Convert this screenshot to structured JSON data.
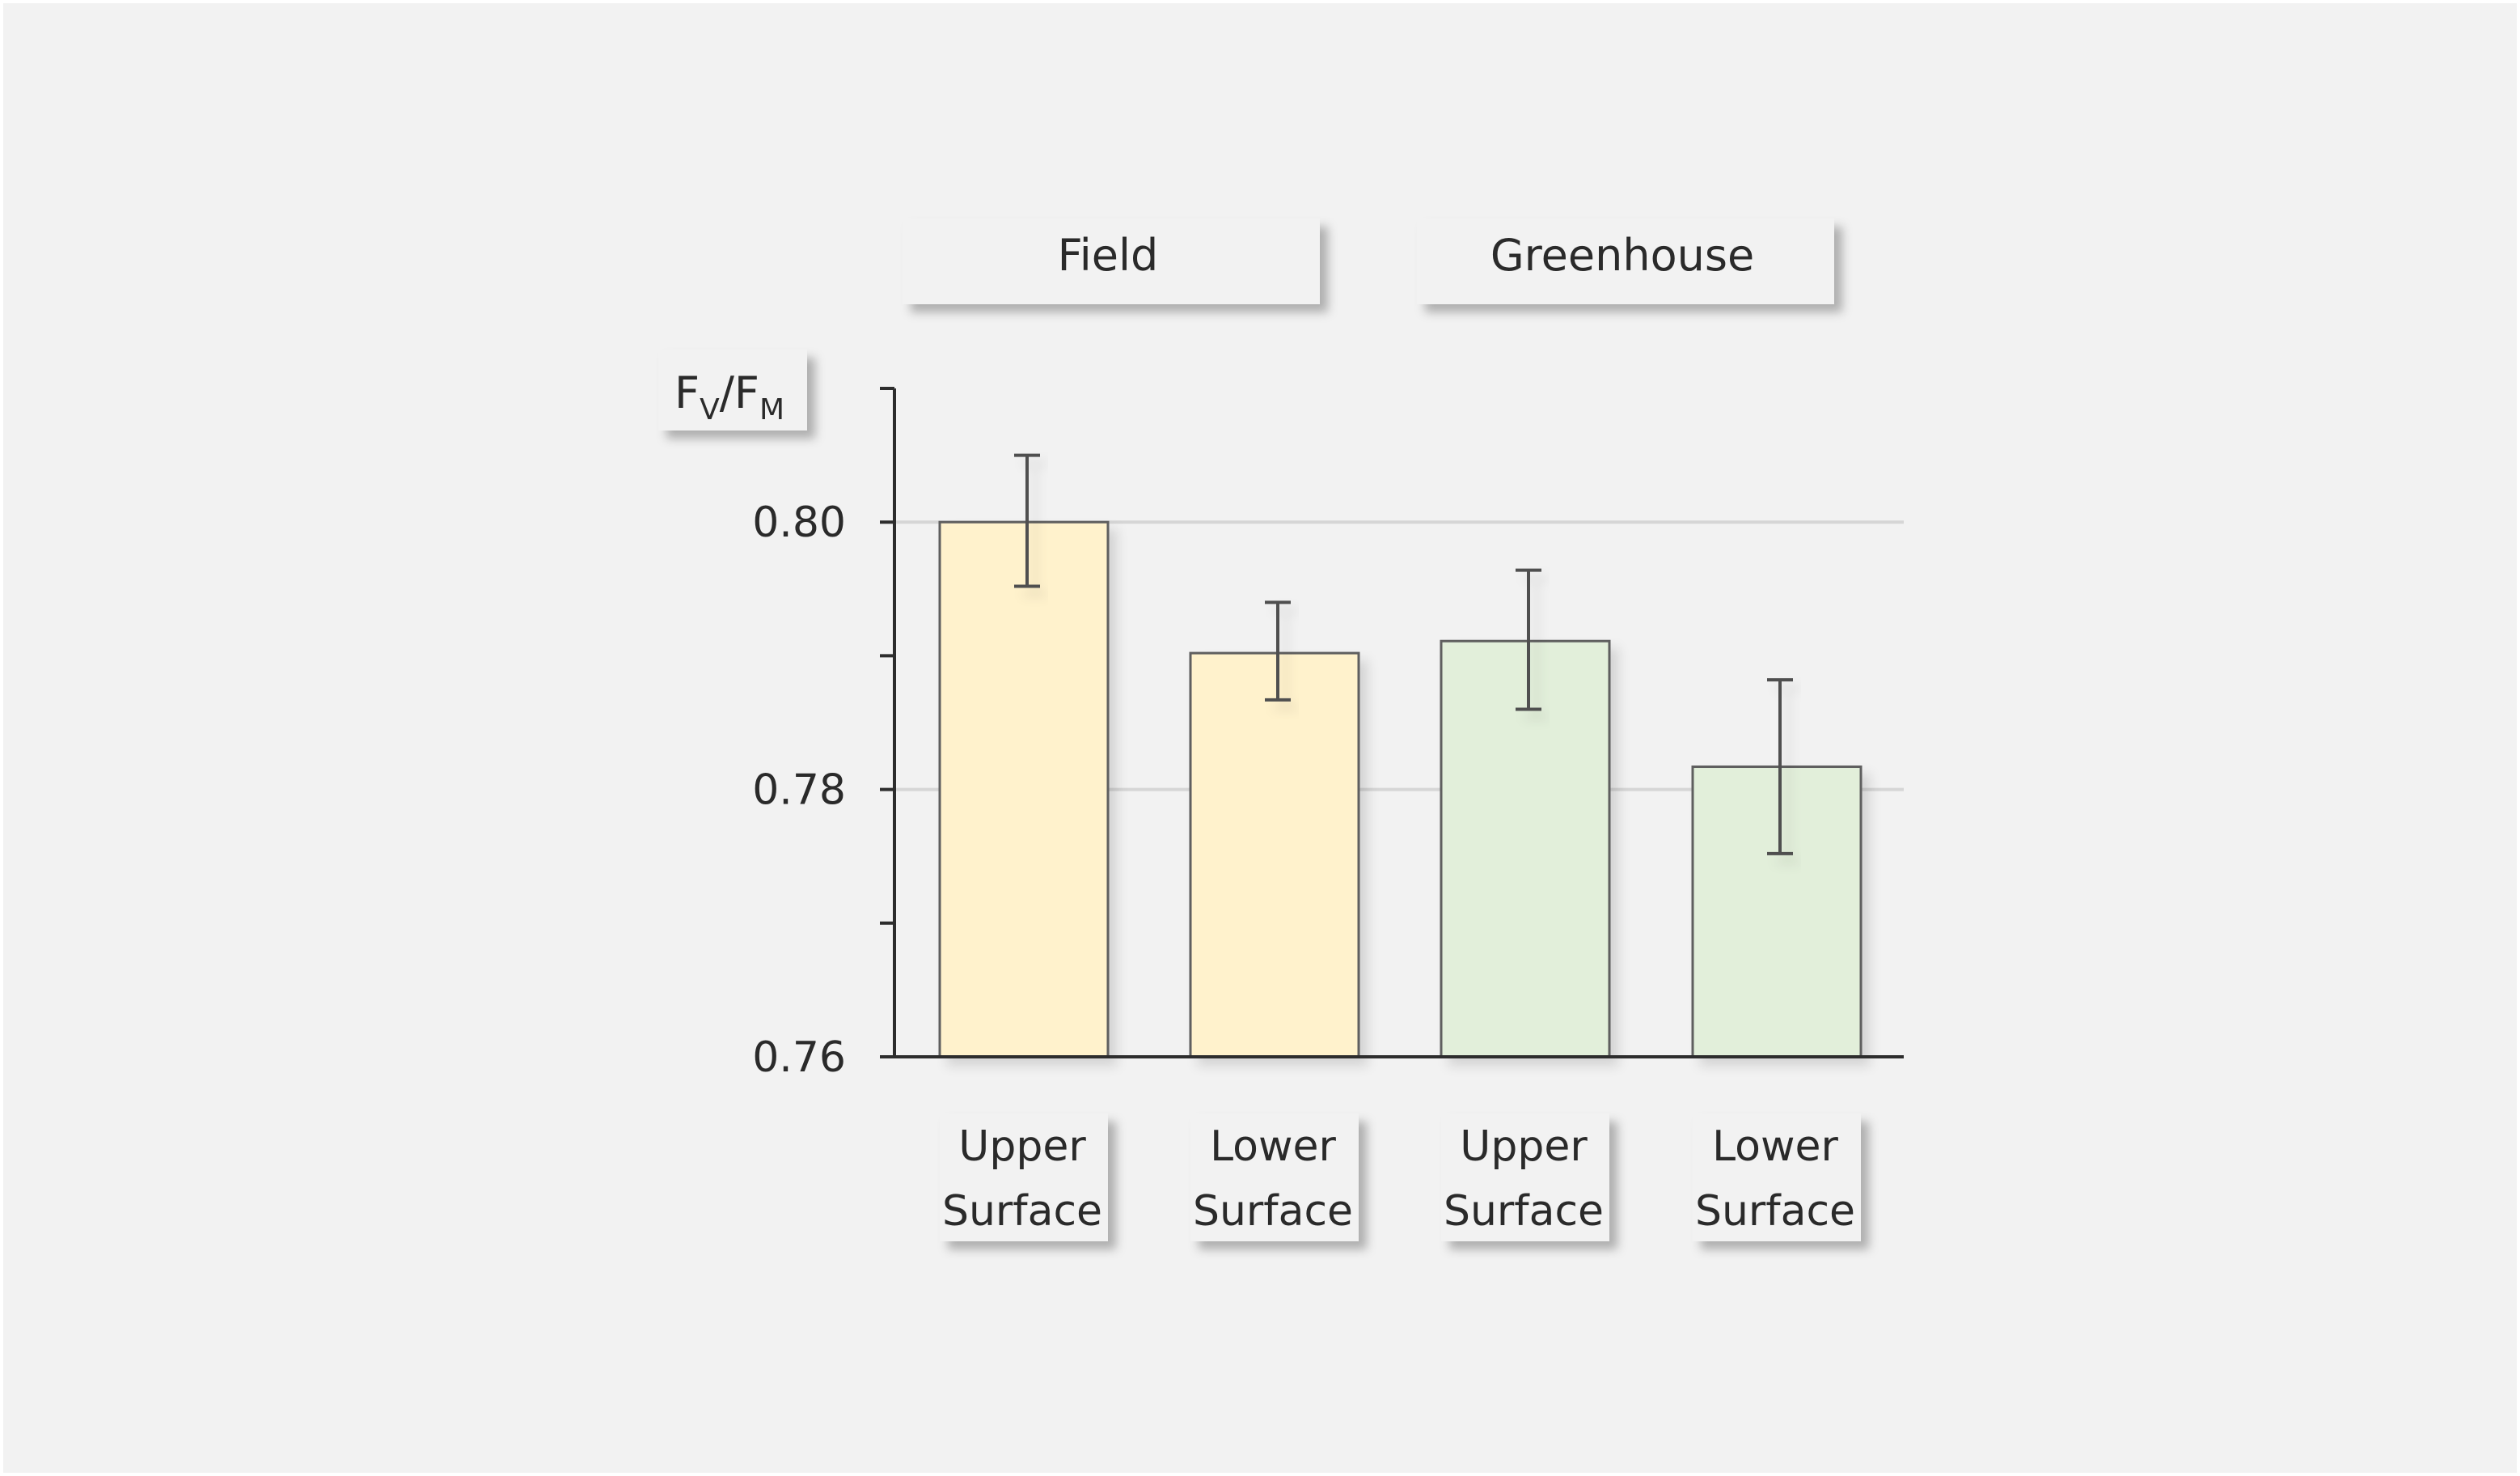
{
  "chart_data": {
    "type": "bar",
    "ylabel": {
      "main": "F",
      "sub1": "V",
      "sep": "/F",
      "sub2": "M"
    },
    "ylim": [
      0.76,
      0.81
    ],
    "yticks": [
      0.76,
      0.78,
      0.8
    ],
    "yticks_minor": [
      0.77,
      0.79,
      0.81
    ],
    "ytick_labels": [
      "0.76",
      "0.78",
      "0.80"
    ],
    "grid": true,
    "groups": [
      {
        "label": "Field",
        "color": "#fff2cc"
      },
      {
        "label": "Greenhouse",
        "color": "#e2efda"
      }
    ],
    "bars": [
      {
        "group": 0,
        "label_line1": "Upper",
        "label_line2": "Surface",
        "value": 0.8,
        "err_low": 0.7952,
        "err_high": 0.805
      },
      {
        "group": 0,
        "label_line1": "Lower",
        "label_line2": "Surface",
        "value": 0.7902,
        "err_low": 0.7867,
        "err_high": 0.794
      },
      {
        "group": 1,
        "label_line1": "Upper",
        "label_line2": "Surface",
        "value": 0.7911,
        "err_low": 0.786,
        "err_high": 0.7964
      },
      {
        "group": 1,
        "label_line1": "Lower",
        "label_line2": "Surface",
        "value": 0.7817,
        "err_low": 0.7752,
        "err_high": 0.7882
      }
    ]
  }
}
